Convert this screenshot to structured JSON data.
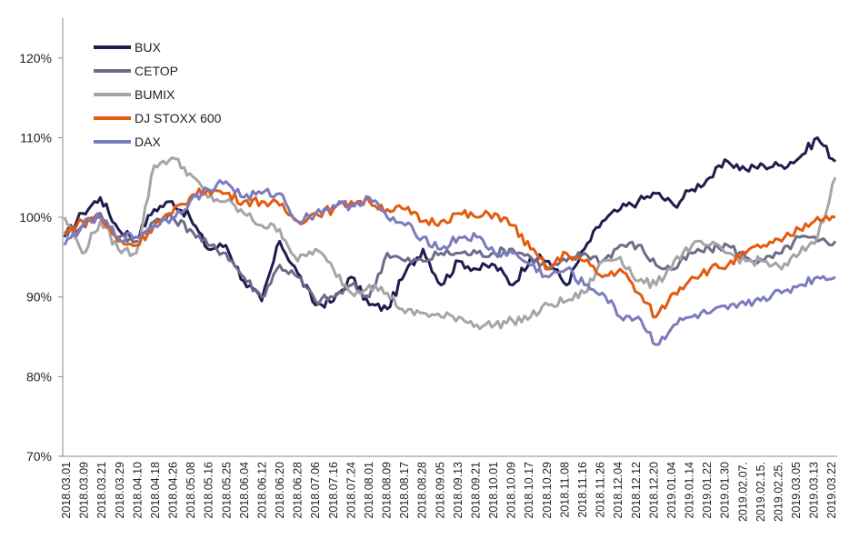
{
  "chart_data": {
    "type": "line",
    "title": "",
    "xlabel": "",
    "ylabel": "",
    "ylim": [
      0.7,
      1.25
    ],
    "yticks": [
      "120%",
      "110%",
      "100%",
      "90%",
      "80%",
      "70%"
    ],
    "ytick_values": [
      1.2,
      1.1,
      1.0,
      0.9,
      0.8,
      0.7
    ],
    "x_tick_labels": [
      "2018.03.01",
      "2018.03.09",
      "2018.03.21",
      "2018.03.29",
      "2018.04.10",
      "2018.04.18",
      "2018.04.26",
      "2018.05.08",
      "2018.05.16",
      "2018.05.25",
      "2018.06.04",
      "2018.06.12",
      "2018.06.20",
      "2018.06.28",
      "2018.07.06",
      "2018.07.16",
      "2018.07.24",
      "2018.08.01",
      "2018.08.09",
      "2018.08.17",
      "2018.08.28",
      "2018.09.05",
      "2018.09.13",
      "2018.09.21",
      "2018.10.01",
      "2018.10.09",
      "2018.10.17",
      "2018.10.29",
      "2018.11.08",
      "2018.11.16",
      "2018.11.26",
      "2018.12.04",
      "2018.12.12",
      "2018.12.20",
      "2019.01.04",
      "2019.01.14",
      "2019.01.22",
      "2019.01.30",
      "2019.02.07.",
      "2019.02.15.",
      "2019.02.25.",
      "2019.03.05",
      "2019.03.13",
      "2019.03.22"
    ],
    "grid": false,
    "legend": "top-left",
    "series": [
      {
        "name": "BUX",
        "color": "#1f1d4d",
        "values": [
          0.975,
          1.005,
          1.025,
          0.985,
          0.975,
          1.01,
          1.02,
          1.0,
          0.96,
          0.965,
          0.92,
          0.895,
          0.97,
          0.93,
          0.89,
          0.895,
          0.925,
          0.89,
          0.885,
          0.93,
          0.96,
          0.915,
          0.945,
          0.935,
          0.94,
          0.915,
          0.95,
          0.945,
          0.915,
          0.96,
          0.995,
          1.01,
          1.02,
          1.03,
          1.015,
          1.035,
          1.05,
          1.07,
          1.06,
          1.065,
          1.065,
          1.075,
          1.1,
          1.07
        ]
      },
      {
        "name": "CETOP",
        "color": "#6e6b8a",
        "values": [
          0.98,
          0.99,
          1.005,
          0.975,
          0.97,
          0.995,
          1.0,
          0.985,
          0.965,
          0.955,
          0.925,
          0.9,
          0.94,
          0.925,
          0.895,
          0.9,
          0.915,
          0.9,
          0.955,
          0.945,
          0.945,
          0.955,
          0.955,
          0.955,
          0.955,
          0.96,
          0.95,
          0.935,
          0.945,
          0.955,
          0.945,
          0.965,
          0.965,
          0.94,
          0.935,
          0.955,
          0.96,
          0.965,
          0.95,
          0.945,
          0.955,
          0.975,
          0.97,
          0.97
        ]
      },
      {
        "name": "BUMIX",
        "color": "#a5a5a5",
        "values": [
          1.0,
          0.955,
          0.995,
          0.96,
          0.955,
          1.065,
          1.075,
          1.055,
          1.025,
          1.02,
          1.005,
          0.99,
          0.985,
          0.945,
          0.96,
          0.935,
          0.905,
          0.915,
          0.905,
          0.88,
          0.88,
          0.875,
          0.875,
          0.865,
          0.865,
          0.87,
          0.875,
          0.89,
          0.895,
          0.905,
          0.945,
          0.95,
          0.92,
          0.915,
          0.945,
          0.965,
          0.965,
          0.955,
          0.945,
          0.945,
          0.935,
          0.955,
          0.975,
          1.05
        ]
      },
      {
        "name": "DJ STOXX 600",
        "color": "#e35a10",
        "values": [
          0.98,
          0.995,
          1.0,
          0.97,
          0.965,
          0.99,
          1.005,
          1.025,
          1.035,
          1.03,
          1.02,
          1.02,
          1.015,
          0.995,
          1.005,
          1.01,
          1.02,
          1.02,
          1.01,
          1.01,
          0.995,
          0.995,
          1.005,
          1.0,
          1.005,
          0.99,
          0.96,
          0.935,
          0.955,
          0.945,
          0.925,
          0.935,
          0.905,
          0.875,
          0.905,
          0.925,
          0.935,
          0.94,
          0.955,
          0.965,
          0.97,
          0.985,
          1.0,
          1.0
        ]
      },
      {
        "name": "DAX",
        "color": "#7b7bc0",
        "values": [
          0.965,
          0.99,
          1.0,
          0.975,
          0.975,
          0.99,
          1.0,
          1.02,
          1.035,
          1.045,
          1.025,
          1.03,
          1.03,
          0.995,
          1.005,
          1.015,
          1.015,
          1.025,
          1.0,
          0.99,
          0.975,
          0.96,
          0.975,
          0.975,
          0.955,
          0.955,
          0.94,
          0.925,
          0.935,
          0.915,
          0.905,
          0.875,
          0.875,
          0.84,
          0.865,
          0.875,
          0.88,
          0.885,
          0.89,
          0.9,
          0.905,
          0.915,
          0.925,
          0.925
        ]
      }
    ]
  }
}
